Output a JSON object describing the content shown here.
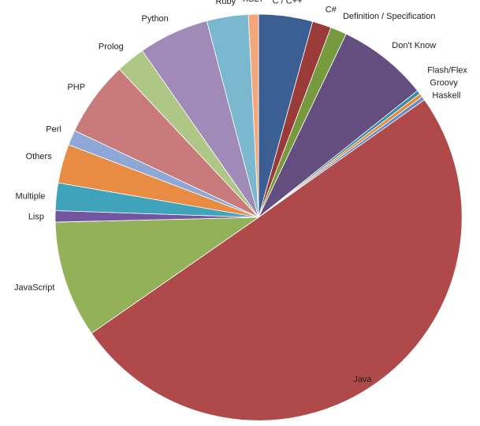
{
  "chart_data": {
    "type": "pie",
    "title": "",
    "start_angle_deg": 0,
    "direction": "clockwise",
    "slices": [
      {
        "label": "C / C++",
        "value": 4.3,
        "color": "#3c5f93"
      },
      {
        "label": "C#",
        "value": 1.5,
        "color": "#9a3b3a"
      },
      {
        "label": "Definition / Specification",
        "value": 1.3,
        "color": "#779a3e"
      },
      {
        "label": "Don't Know",
        "value": 7.2,
        "color": "#634e7f"
      },
      {
        "label": "Flash/Flex",
        "value": 0.3,
        "color": "#3a8aa6"
      },
      {
        "label": "Groovy",
        "value": 0.3,
        "color": "#e08a3a"
      },
      {
        "label": "Haskell",
        "value": 0.3,
        "color": "#6b8cc4"
      },
      {
        "label": "Java",
        "value": 50.2,
        "color": "#b04a4a"
      },
      {
        "label": "JavaScript",
        "value": 9.3,
        "color": "#93b159"
      },
      {
        "label": "Lisp",
        "value": 0.9,
        "color": "#7354a0"
      },
      {
        "label": "Multiple",
        "value": 2.2,
        "color": "#3ea3bb"
      },
      {
        "label": "Others",
        "value": 3.1,
        "color": "#e88c44"
      },
      {
        "label": "Perl",
        "value": 1.2,
        "color": "#8fa7d6"
      },
      {
        "label": "PHP",
        "value": 6.0,
        "color": "#c97a7a"
      },
      {
        "label": "Prolog",
        "value": 2.3,
        "color": "#aec786"
      },
      {
        "label": "Python",
        "value": 5.6,
        "color": "#9f8ab8"
      },
      {
        "label": "Ruby",
        "value": 3.3,
        "color": "#7ab8cf"
      },
      {
        "label": "XSLT",
        "value": 0.8,
        "color": "#f4a77a"
      }
    ]
  }
}
